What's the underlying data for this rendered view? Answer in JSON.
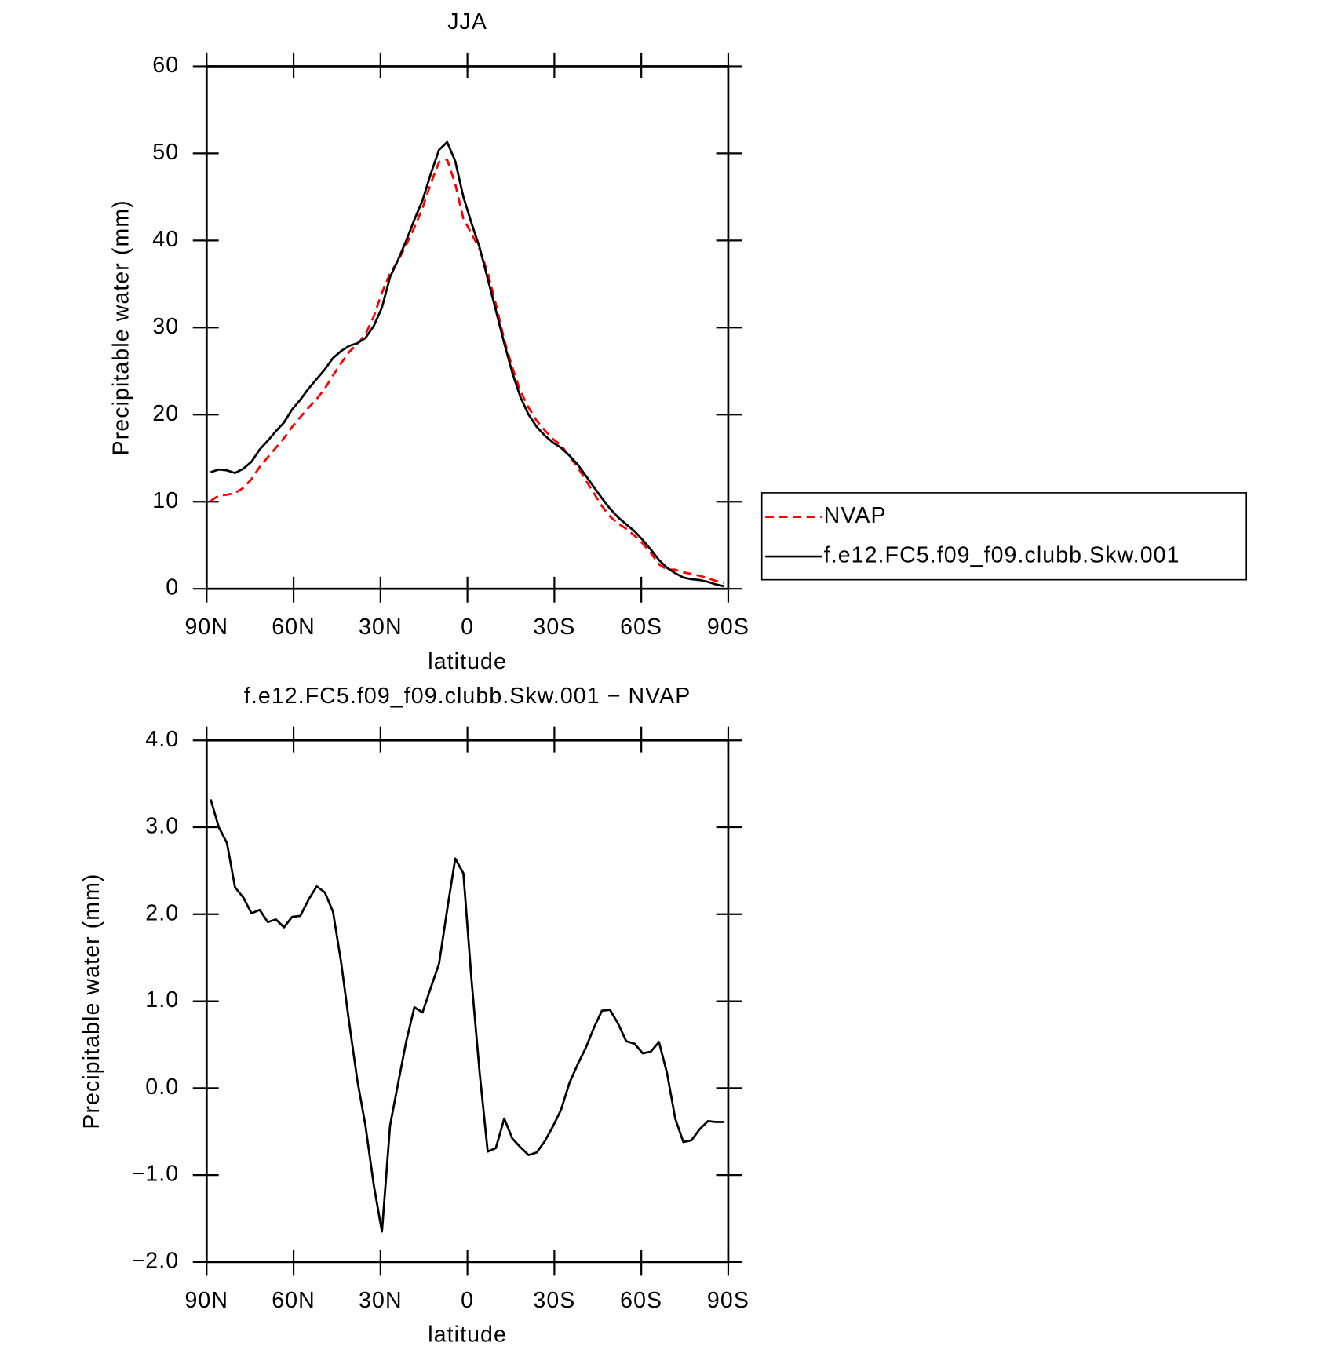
{
  "chart_data": [
    {
      "type": "line",
      "title": "JJA",
      "xlabel": "latitude",
      "ylabel": "Precipitable water (mm)",
      "x": [
        88.6,
        85.8,
        83.0,
        80.2,
        77.3,
        74.5,
        71.7,
        68.9,
        66.1,
        63.3,
        60.5,
        57.7,
        54.8,
        52.0,
        49.2,
        46.4,
        43.6,
        40.8,
        38.0,
        35.2,
        32.3,
        29.5,
        26.7,
        23.9,
        21.1,
        18.3,
        15.5,
        12.7,
        9.8,
        7.0,
        4.2,
        1.4,
        -1.4,
        -4.2,
        -7.0,
        -9.8,
        -12.7,
        -15.5,
        -18.3,
        -21.1,
        -23.9,
        -26.7,
        -29.5,
        -32.3,
        -35.2,
        -38.0,
        -40.8,
        -43.6,
        -46.4,
        -49.2,
        -52.0,
        -54.8,
        -57.7,
        -60.5,
        -63.3,
        -66.1,
        -68.9,
        -71.7,
        -74.5,
        -77.3,
        -80.2,
        -83.0,
        -85.8,
        -88.6
      ],
      "series": [
        {
          "name": "NVAP",
          "color": "#ff0000",
          "linestyle": "dashed",
          "values": [
            10.1,
            10.7,
            10.8,
            11.0,
            11.6,
            12.6,
            14.0,
            15.1,
            16.2,
            17.3,
            18.6,
            19.7,
            20.8,
            21.8,
            23.0,
            24.5,
            25.9,
            27.2,
            28.1,
            29.2,
            31.3,
            34.0,
            36.2,
            37.7,
            39.5,
            41.5,
            43.7,
            46.5,
            49.0,
            49.3,
            46.5,
            42.5,
            40.8,
            39.0,
            36.3,
            32.7,
            28.6,
            25.4,
            22.7,
            20.8,
            19.3,
            18.2,
            17.2,
            16.5,
            15.2,
            14.0,
            12.5,
            11.0,
            9.5,
            8.3,
            7.5,
            6.9,
            6.1,
            5.2,
            4.1,
            2.8,
            2.2,
            2.2,
            1.9,
            1.7,
            1.5,
            1.2,
            0.9,
            0.7
          ]
        },
        {
          "name": "f.e12.FC5.f09_f09.clubb.Skw.001",
          "color": "#000000",
          "linestyle": "solid",
          "values": [
            13.4,
            13.7,
            13.6,
            13.3,
            13.8,
            14.6,
            16.0,
            17.0,
            18.1,
            19.1,
            20.6,
            21.7,
            23.0,
            24.1,
            25.2,
            26.5,
            27.3,
            27.9,
            28.2,
            28.8,
            30.2,
            32.3,
            35.8,
            37.8,
            40.0,
            42.4,
            44.6,
            47.6,
            50.4,
            51.3,
            49.1,
            45.0,
            42.0,
            39.2,
            35.6,
            32.0,
            28.2,
            24.8,
            22.0,
            20.0,
            18.6,
            17.6,
            16.8,
            16.2,
            15.3,
            14.3,
            13.0,
            11.7,
            10.4,
            9.2,
            8.2,
            7.4,
            6.6,
            5.6,
            4.5,
            3.3,
            2.4,
            1.8,
            1.3,
            1.1,
            1.0,
            0.8,
            0.5,
            0.3
          ]
        }
      ],
      "xlim": [
        90,
        -90
      ],
      "xticks": [
        {
          "value": 90,
          "label": "90N"
        },
        {
          "value": 60,
          "label": "60N"
        },
        {
          "value": 30,
          "label": "30N"
        },
        0,
        {
          "value": -30,
          "label": "30S"
        },
        {
          "value": -60,
          "label": "60S"
        },
        {
          "value": -90,
          "label": "90S"
        }
      ],
      "ylim": [
        0,
        60
      ],
      "yticks": [
        0,
        10,
        20,
        30,
        40,
        50,
        60
      ],
      "legend": "right"
    },
    {
      "type": "line",
      "title": "f.e12.FC5.f09_f09.clubb.Skw.001 − NVAP",
      "xlabel": "latitude",
      "ylabel": "Precipitable water (mm)",
      "x": [
        88.6,
        85.8,
        83.0,
        80.2,
        77.3,
        74.5,
        71.7,
        68.9,
        66.1,
        63.3,
        60.5,
        57.7,
        54.8,
        52.0,
        49.2,
        46.4,
        43.6,
        40.8,
        38.0,
        35.2,
        32.3,
        29.5,
        26.7,
        23.9,
        21.1,
        18.3,
        15.5,
        12.7,
        9.8,
        7.0,
        4.2,
        1.4,
        -1.4,
        -4.2,
        -7.0,
        -9.8,
        -12.7,
        -15.5,
        -18.3,
        -21.1,
        -23.9,
        -26.7,
        -29.5,
        -32.3,
        -35.2,
        -38.0,
        -40.8,
        -43.6,
        -46.4,
        -49.2,
        -52.0,
        -54.8,
        -57.7,
        -60.5,
        -63.3,
        -66.1,
        -68.9,
        -71.7,
        -74.5,
        -77.3,
        -80.2,
        -83.0,
        -85.8,
        -88.6
      ],
      "values": [
        3.32,
        3.0,
        2.82,
        2.31,
        2.19,
        2.01,
        2.05,
        1.91,
        1.94,
        1.85,
        1.97,
        1.98,
        2.17,
        2.32,
        2.25,
        2.03,
        1.45,
        0.75,
        0.09,
        -0.43,
        -1.12,
        -1.65,
        -0.43,
        0.06,
        0.54,
        0.93,
        0.87,
        1.15,
        1.43,
        2.05,
        2.64,
        2.47,
        1.25,
        0.18,
        -0.73,
        -0.69,
        -0.35,
        -0.58,
        -0.68,
        -0.77,
        -0.74,
        -0.61,
        -0.44,
        -0.25,
        0.06,
        0.27,
        0.46,
        0.69,
        0.89,
        0.9,
        0.74,
        0.54,
        0.51,
        0.4,
        0.42,
        0.53,
        0.17,
        -0.35,
        -0.62,
        -0.6,
        -0.47,
        -0.38,
        -0.39,
        -0.39
      ],
      "color": "#000000",
      "xlim": [
        90,
        -90
      ],
      "xticks": [
        {
          "value": 90,
          "label": "90N"
        },
        {
          "value": 60,
          "label": "60N"
        },
        {
          "value": 30,
          "label": "30N"
        },
        0,
        {
          "value": -30,
          "label": "30S"
        },
        {
          "value": -60,
          "label": "60S"
        },
        {
          "value": -90,
          "label": "90S"
        }
      ],
      "ylim": [
        -2,
        4
      ],
      "yticks": [
        {
          "value": -2,
          "label": "−2.0"
        },
        {
          "value": -1,
          "label": "−1.0"
        },
        {
          "value": 0,
          "label": "0.0"
        },
        {
          "value": 1,
          "label": "1.0"
        },
        {
          "value": 2,
          "label": "2.0"
        },
        {
          "value": 3,
          "label": "3.0"
        },
        {
          "value": 4,
          "label": "4.0"
        }
      ]
    }
  ]
}
